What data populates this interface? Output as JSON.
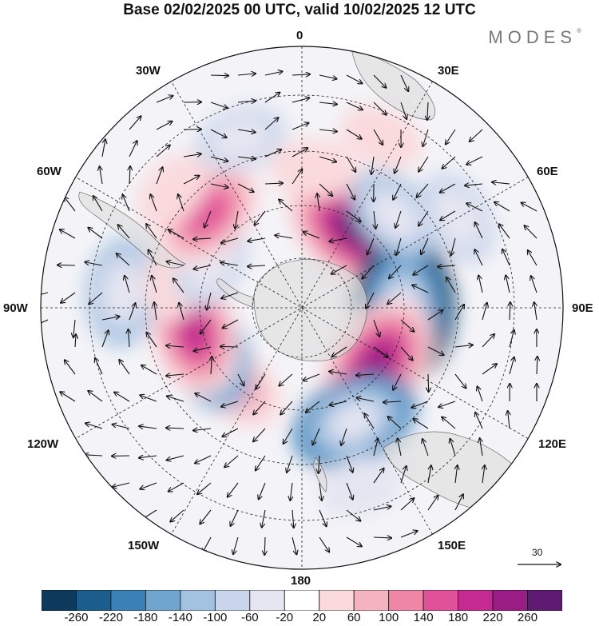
{
  "title": "Base 02/02/2025 00 UTC, valid 10/02/2025 12 UTC",
  "brand": "MODES",
  "brand_mark": "®",
  "longitude_labels": {
    "n": "0",
    "ne": "30E",
    "ene": "60E",
    "e": "90E",
    "ese": "120E",
    "se": "150E",
    "s": "180",
    "sw": "150W",
    "wsw": "120W",
    "w": "90W",
    "wnw": "60W",
    "nw": "30W"
  },
  "reference_vector": "30",
  "colorbar": {
    "colors": [
      "#0d3a5c",
      "#1b5d8c",
      "#3a81b8",
      "#6fa5cf",
      "#a3c1e0",
      "#c9d5ea",
      "#e6e6f2",
      "#ffffff",
      "#fadadd",
      "#f5b3c0",
      "#ef86a6",
      "#e0519a",
      "#c42a8f",
      "#9a1c85",
      "#5e1a72"
    ],
    "ticks": [
      "-260",
      "-220",
      "-180",
      "-140",
      "-100",
      "-60",
      "-20",
      "20",
      "60",
      "100",
      "140",
      "180",
      "220",
      "260"
    ]
  },
  "anomalies": [
    {
      "lon": 35,
      "lat": -57,
      "value": 280
    },
    {
      "lon": 90,
      "lat": -55,
      "value": -280
    },
    {
      "lon": 126,
      "lat": -58,
      "value": 240
    },
    {
      "lon": 155,
      "lat": -47,
      "value": -200
    },
    {
      "lon": 162,
      "lat": -25,
      "value": -60
    },
    {
      "lon": -140,
      "lat": -55,
      "value": 100
    },
    {
      "lon": -115,
      "lat": -54,
      "value": -170
    },
    {
      "lon": -103,
      "lat": -52,
      "value": 190
    },
    {
      "lon": -85,
      "lat": -28,
      "value": -130
    },
    {
      "lon": -77,
      "lat": -45,
      "value": 60
    },
    {
      "lon": -63,
      "lat": -55,
      "value": -90
    },
    {
      "lon": -45,
      "lat": -44,
      "value": 170
    },
    {
      "lon": -48,
      "lat": -30,
      "value": 50
    },
    {
      "lon": -20,
      "lat": -28,
      "value": -70
    },
    {
      "lon": 5,
      "lat": -42,
      "value": 60
    },
    {
      "lon": 45,
      "lat": -45,
      "value": -110
    },
    {
      "lon": 60,
      "lat": -28,
      "value": -90
    },
    {
      "lon": 25,
      "lat": -25,
      "value": 50
    }
  ]
}
